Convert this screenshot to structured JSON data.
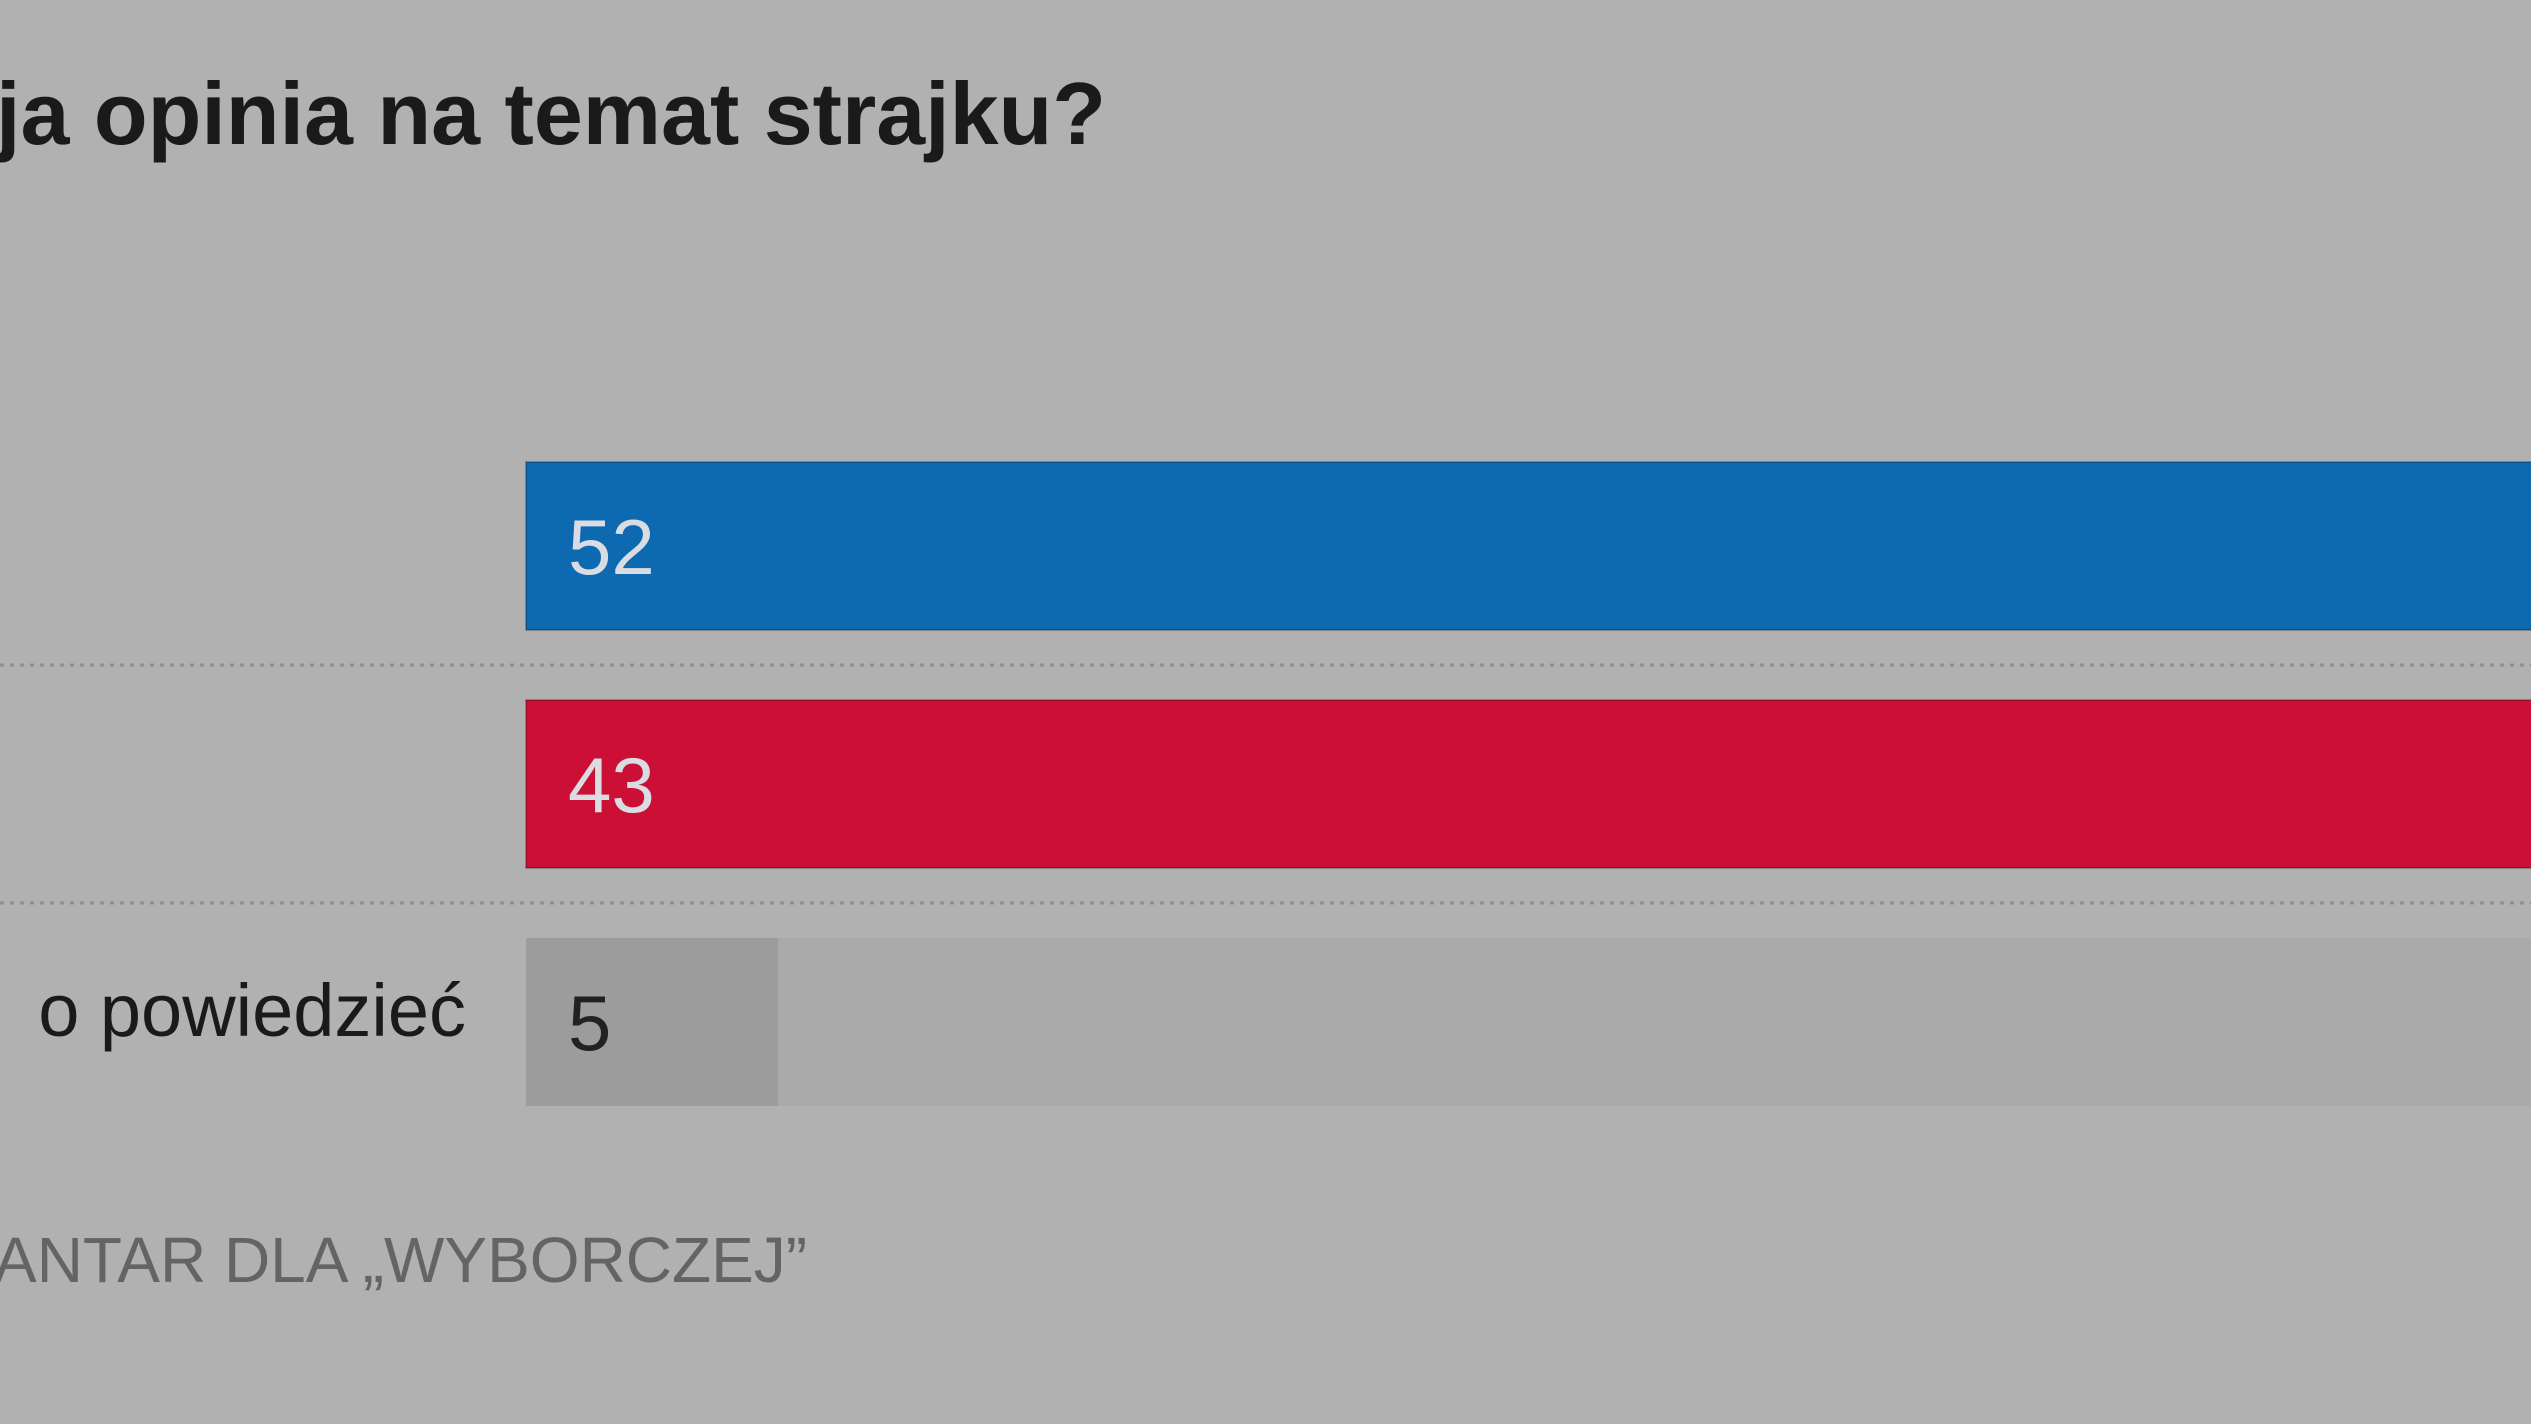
{
  "chart_data": {
    "type": "hbar",
    "title": "ja opinia na temat strajku?",
    "categories": [
      null,
      null,
      "o powiedzieć"
    ],
    "values": [
      52,
      43,
      5
    ],
    "colors": [
      "#0d69b0",
      "#cc0f35",
      "#9c9c9c"
    ],
    "source": "ANTAR DLA „WYBORCZEJ”"
  }
}
